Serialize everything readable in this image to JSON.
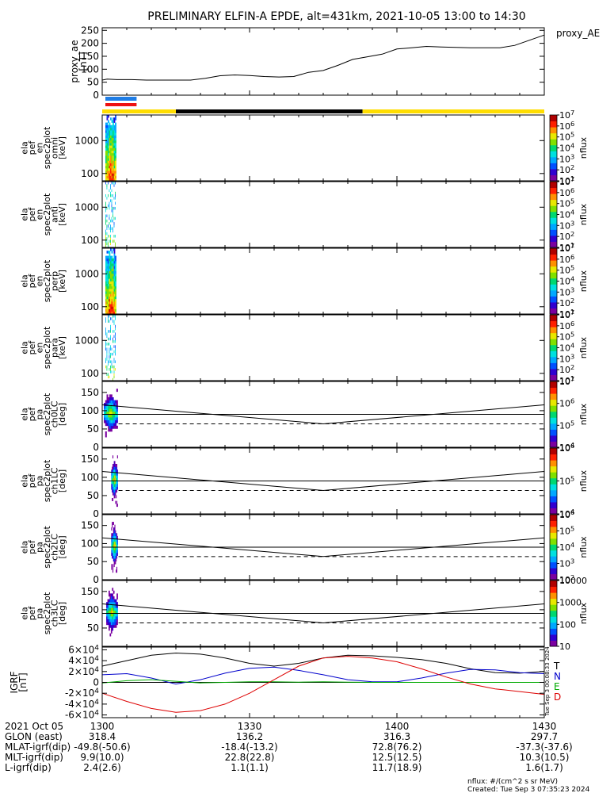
{
  "title": "PRELIMINARY ELFIN-A EPDE, alt=431km, 2021-10-05 13:00 to 14:30",
  "chart_data": [
    {
      "type": "line",
      "id": "proxy_ae",
      "ylabel": [
        "proxy_ae",
        "[nT]"
      ],
      "legend": "proxy_AE",
      "ylim": [
        0,
        260
      ],
      "yticks": [
        "0",
        "50",
        "100",
        "150",
        "200",
        "250"
      ],
      "ytick_values": [
        0,
        50,
        100,
        150,
        200,
        250
      ],
      "x": [
        0,
        1,
        3,
        6,
        9,
        12,
        15,
        18,
        21,
        24,
        27,
        30,
        33,
        36,
        39,
        42,
        45,
        48,
        51,
        54,
        57,
        60,
        63,
        66,
        69,
        72,
        75,
        78,
        81,
        84,
        87,
        90
      ],
      "values": [
        58,
        62,
        60,
        60,
        58,
        58,
        58,
        58,
        65,
        75,
        78,
        76,
        72,
        70,
        72,
        88,
        95,
        115,
        138,
        148,
        158,
        178,
        183,
        188,
        186,
        184,
        183,
        183,
        183,
        192,
        212,
        232
      ]
    },
    {
      "type": "heatmap",
      "id": "spec-omni",
      "ylabel": [
        "ela",
        "pef",
        "en",
        "spec2plot",
        "omni",
        "[keV]"
      ],
      "yscale": "log",
      "ylim": [
        60,
        6000
      ],
      "yticks": [
        "100",
        "1000"
      ],
      "ytick_values": [
        100,
        1000
      ],
      "colorbar": {
        "label": "nflux",
        "ticks": [
          "10^1",
          "10^2",
          "10^3",
          "10^4",
          "10^5",
          "10^6",
          "10^7"
        ],
        "scale": "log"
      },
      "data_span": [
        0,
        3
      ]
    },
    {
      "type": "heatmap",
      "id": "spec-anti",
      "ylabel": [
        "ela",
        "pef",
        "en",
        "spec2plot",
        "anti",
        "[keV]"
      ],
      "yscale": "log",
      "ylim": [
        60,
        6000
      ],
      "yticks": [
        "100",
        "1000"
      ],
      "ytick_values": [
        100,
        1000
      ],
      "colorbar": {
        "label": "nflux",
        "ticks": [
          "10^1",
          "10^2",
          "10^3",
          "10^4",
          "10^5",
          "10^6",
          "10^7"
        ],
        "scale": "log"
      },
      "data_span": [
        0,
        3
      ]
    },
    {
      "type": "heatmap",
      "id": "spec-perp",
      "ylabel": [
        "ela",
        "pef",
        "en",
        "spec2plot",
        "perp",
        "[keV]"
      ],
      "yscale": "log",
      "ylim": [
        60,
        6000
      ],
      "yticks": [
        "100",
        "1000"
      ],
      "ytick_values": [
        100,
        1000
      ],
      "colorbar": {
        "label": "nflux",
        "ticks": [
          "10^1",
          "10^2",
          "10^3",
          "10^4",
          "10^5",
          "10^6",
          "10^7"
        ],
        "scale": "log"
      },
      "data_span": [
        0,
        3
      ]
    },
    {
      "type": "heatmap",
      "id": "spec-para",
      "ylabel": [
        "ela",
        "pef",
        "en",
        "spec2plot",
        "para",
        "[keV]"
      ],
      "yscale": "log",
      "ylim": [
        60,
        6000
      ],
      "yticks": [
        "100",
        "1000"
      ],
      "ytick_values": [
        100,
        1000
      ],
      "colorbar": {
        "label": "nflux",
        "ticks": [
          "10^1",
          "10^2",
          "10^3",
          "10^4",
          "10^5",
          "10^6",
          "10^7"
        ],
        "scale": "log"
      },
      "data_span": [
        0,
        3
      ]
    },
    {
      "type": "heatmap",
      "id": "pa-ch0",
      "ylabel": [
        "ela",
        "pef",
        "pa",
        "spec2plot",
        "ch0LC",
        "[deg]"
      ],
      "ylim": [
        0,
        180
      ],
      "yticks": [
        "0",
        "50",
        "100",
        "150"
      ],
      "ytick_values": [
        0,
        50,
        100,
        150
      ],
      "colorbar": {
        "label": "nflux",
        "ticks": [
          "10^4",
          "10^5",
          "10^6",
          "10^7"
        ],
        "scale": "log"
      },
      "data_span": [
        0,
        3
      ],
      "lc_curve_x": [
        0,
        45,
        90
      ],
      "lc_curve_y": [
        116,
        64,
        116
      ],
      "flat_line": 90,
      "dashed_line": 64
    },
    {
      "type": "heatmap",
      "id": "pa-ch1",
      "ylabel": [
        "ela",
        "pef",
        "pa",
        "spec2plot",
        "ch1LC",
        "[deg]"
      ],
      "ylim": [
        0,
        180
      ],
      "yticks": [
        "0",
        "50",
        "100",
        "150"
      ],
      "ytick_values": [
        0,
        50,
        100,
        150
      ],
      "colorbar": {
        "label": "nflux",
        "ticks": [
          "10^4",
          "10^5",
          "10^6"
        ],
        "scale": "log"
      },
      "data_span": [
        1.5,
        3
      ],
      "lc_curve_x": [
        0,
        45,
        90
      ],
      "lc_curve_y": [
        116,
        64,
        116
      ],
      "flat_line": 90,
      "dashed_line": 64
    },
    {
      "type": "heatmap",
      "id": "pa-ch2",
      "ylabel": [
        "ela",
        "pef",
        "pa",
        "spec2plot",
        "ch2LC",
        "[deg]"
      ],
      "ylim": [
        0,
        180
      ],
      "yticks": [
        "0",
        "50",
        "100",
        "150"
      ],
      "ytick_values": [
        0,
        50,
        100,
        150
      ],
      "colorbar": {
        "label": "nflux",
        "ticks": [
          "10^2",
          "10^3",
          "10^4",
          "10^5",
          "10^6"
        ],
        "scale": "log"
      },
      "data_span": [
        1.5,
        3
      ],
      "lc_curve_x": [
        0,
        45,
        90
      ],
      "lc_curve_y": [
        116,
        64,
        116
      ],
      "flat_line": 90,
      "dashed_line": 64
    },
    {
      "type": "heatmap",
      "id": "pa-ch3",
      "ylabel": [
        "ela",
        "pef",
        "pa",
        "spec2plot",
        "ch3LC",
        "[deg]"
      ],
      "ylim": [
        0,
        180
      ],
      "yticks": [
        "50",
        "100",
        "150"
      ],
      "ytick_values": [
        50,
        100,
        150
      ],
      "colorbar": {
        "label": "nflux",
        "ticks": [
          "10",
          "100",
          "1000",
          "10000"
        ],
        "scale": "log"
      },
      "data_span": [
        0.5,
        3
      ],
      "lc_curve_x": [
        0,
        45,
        90
      ],
      "lc_curve_y": [
        116,
        64,
        116
      ],
      "flat_line": 90,
      "dashed_line": 64
    },
    {
      "type": "line",
      "id": "igrf",
      "ylabel": [
        "IGRF",
        "[nT]"
      ],
      "ylim": [
        -65000,
        65000
      ],
      "yticks": [
        "-6×10^4",
        "-4×10^4",
        "-2×10^4",
        "0",
        "2×10^4",
        "4×10^4",
        "6×10^4"
      ],
      "ytick_values": [
        -60000,
        -40000,
        -20000,
        0,
        20000,
        40000,
        60000
      ],
      "series": [
        {
          "name": "T",
          "color": "#000000",
          "x": [
            0,
            5,
            10,
            15,
            20,
            25,
            30,
            35,
            40,
            45,
            50,
            55,
            60,
            65,
            70,
            75,
            80,
            85,
            90
          ],
          "values": [
            30000,
            40000,
            50000,
            54000,
            52000,
            45000,
            35000,
            30000,
            35000,
            45000,
            50000,
            49000,
            46000,
            42000,
            35000,
            25000,
            18000,
            17000,
            20000
          ]
        },
        {
          "name": "N",
          "color": "#0000cc",
          "x": [
            0,
            5,
            10,
            15,
            20,
            25,
            30,
            35,
            40,
            45,
            50,
            55,
            60,
            65,
            70,
            75,
            80,
            85,
            90
          ],
          "values": [
            14000,
            16000,
            8000,
            -3000,
            5000,
            17000,
            26000,
            28000,
            22000,
            14000,
            5000,
            1000,
            1000,
            8000,
            17000,
            24000,
            23000,
            18000,
            16000
          ]
        },
        {
          "name": "E",
          "color": "#00aa00",
          "x": [
            0,
            5,
            10,
            15,
            20,
            25,
            30,
            35,
            40,
            45,
            50,
            55,
            60,
            65,
            70,
            75,
            80,
            85,
            90
          ],
          "values": [
            -1000,
            3000,
            5000,
            2000,
            -1000,
            0,
            1000,
            1000,
            500,
            1000,
            500,
            0,
            0,
            0,
            0,
            0,
            0,
            0,
            0
          ]
        },
        {
          "name": "D",
          "color": "#dd0000",
          "x": [
            0,
            5,
            10,
            15,
            20,
            25,
            30,
            35,
            40,
            45,
            50,
            55,
            60,
            65,
            70,
            75,
            80,
            85,
            90
          ],
          "values": [
            -20000,
            -35000,
            -48000,
            -55000,
            -52000,
            -40000,
            -20000,
            5000,
            30000,
            45000,
            48000,
            45000,
            38000,
            25000,
            10000,
            -3000,
            -12000,
            -17000,
            -22000
          ]
        }
      ],
      "created_stamp": "Tue Sep  3 00:08:33 2024"
    }
  ],
  "xaxis": {
    "tick_minutes": [
      0,
      30,
      60,
      90
    ],
    "rows": [
      {
        "label": "2021 Oct 05",
        "values": [
          "1300",
          "1330",
          "1400",
          "1430"
        ]
      },
      {
        "label": "GLON (east)",
        "values": [
          "318.4",
          "136.2",
          "316.3",
          "297.7"
        ]
      },
      {
        "label": "MLAT-igrf(dip)",
        "values": [
          "-49.8(-50.6)",
          "-18.4(-13.2)",
          "72.8(76.2)",
          "-37.3(-37.6)"
        ]
      },
      {
        "label": "MLT-igrf(dip)",
        "values": [
          "9.9(10.0)",
          "22.8(22.8)",
          "12.5(12.5)",
          "10.3(10.5)"
        ]
      },
      {
        "label": "L-igrf(dip)",
        "values": [
          "2.4(2.6)",
          "1.1(1.1)",
          "11.7(18.9)",
          "1.6(1.7)"
        ]
      }
    ]
  },
  "status_bars": {
    "blue": {
      "color": "#1e7de6",
      "span": [
        0,
        7
      ]
    },
    "red": {
      "color": "#ee1111",
      "span": [
        0,
        7
      ]
    },
    "track": [
      {
        "color": "#ffdd00",
        "span": [
          0,
          15
        ]
      },
      {
        "color": "#000000",
        "span": [
          15,
          53
        ]
      },
      {
        "color": "#ffdd00",
        "span": [
          53,
          90
        ]
      }
    ]
  },
  "footer": {
    "units": "nflux: #/(cm^2 s sr MeV)",
    "created": "Created: Tue Sep  3 07:35:23 2024"
  }
}
